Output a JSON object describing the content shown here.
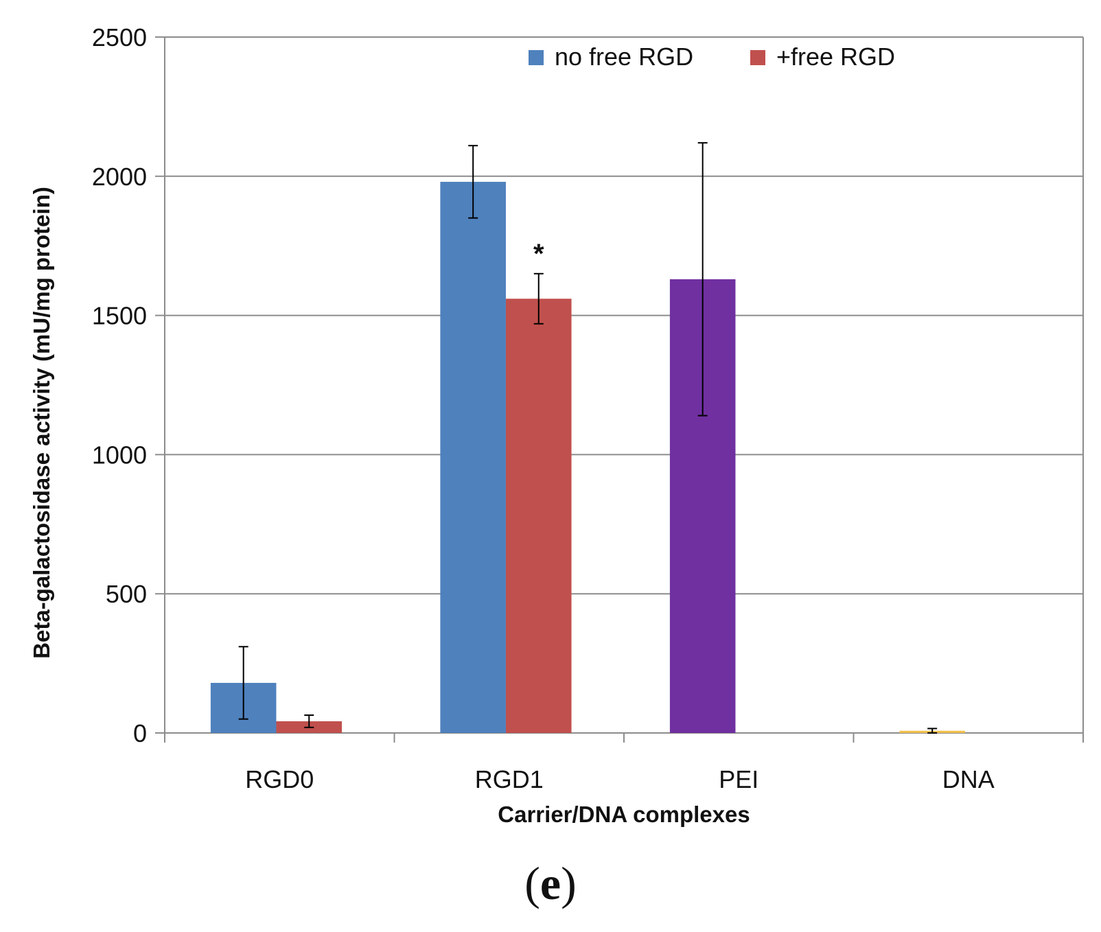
{
  "chart_data": {
    "type": "bar",
    "title": "",
    "xlabel": "Carrier/DNA complexes",
    "ylabel": "Beta-galactosidase activity (mU/mg protein)",
    "ylim": [
      0,
      2500
    ],
    "yticks": [
      0,
      500,
      1000,
      1500,
      2000,
      2500
    ],
    "ytick_labels": [
      "0",
      "500",
      "1000",
      "1500",
      "2000",
      "2500"
    ],
    "grid": true,
    "legend_position": "top-right",
    "categories": [
      "RGD0",
      "RGD1",
      "PEI",
      "DNA"
    ],
    "series": [
      {
        "name": "no free RGD",
        "color": "#4F81BD",
        "in_legend": true,
        "values": [
          180,
          1980,
          null,
          null
        ],
        "errors": [
          130,
          130,
          null,
          null
        ]
      },
      {
        "name": "+free RGD",
        "color": "#C0504D",
        "in_legend": true,
        "values": [
          42,
          1560,
          null,
          null
        ],
        "errors": [
          22,
          90,
          null,
          null
        ]
      },
      {
        "name": "PEI",
        "color": "#7030A0",
        "in_legend": false,
        "values": [
          null,
          null,
          1630,
          null
        ],
        "errors": [
          null,
          null,
          490,
          null
        ]
      },
      {
        "name": "DNA",
        "color": "#F2C14E",
        "in_legend": false,
        "values": [
          null,
          null,
          null,
          8
        ],
        "errors": [
          null,
          null,
          null,
          8
        ]
      }
    ],
    "annotations": [
      {
        "text": "*",
        "category": "RGD1",
        "series": "+free RGD"
      }
    ],
    "panel_label": {
      "open": "(",
      "letter": "e",
      "close": ")"
    }
  }
}
